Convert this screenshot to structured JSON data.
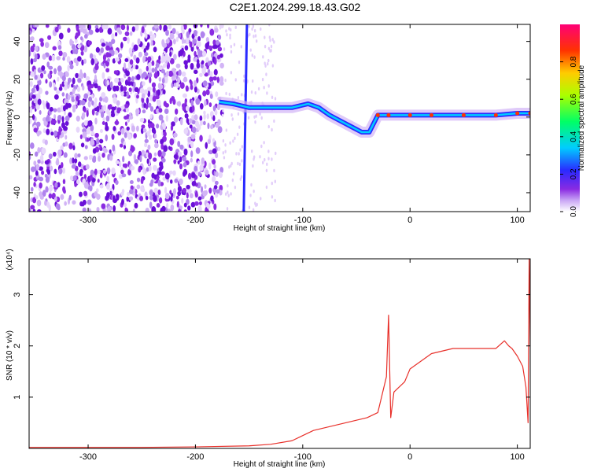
{
  "title": "C2E1.2024.299.18.43.G02",
  "chart_data": [
    {
      "type": "heatmap",
      "xlabel": "Height of straight line (km)",
      "ylabel": "Frequency (Hz)",
      "xlim": [
        -355,
        112
      ],
      "ylim": [
        -50,
        49
      ],
      "xticks": [
        -300,
        -200,
        -100,
        0,
        100
      ],
      "yticks": [
        -40,
        -20,
        0,
        20,
        40
      ],
      "grid": false,
      "colorbar": {
        "label": "Normalized spectral amplitude",
        "ticks": [
          0.0,
          0.2,
          0.4,
          0.6,
          0.8
        ],
        "colors": [
          "#ffffff",
          "#c9a6f5",
          "#8a2be2",
          "#2a2aff",
          "#00ccff",
          "#00ff66",
          "#aaff00",
          "#ffcc00",
          "#ff3300",
          "#ff0077"
        ]
      },
      "features": {
        "noise_region_x": [
          -355,
          -175
        ],
        "signal_track": {
          "x": [
            -178,
            -165,
            -150,
            -130,
            -110,
            -95,
            -85,
            -75,
            -65,
            -55,
            -45,
            -38,
            -30,
            -20,
            0,
            20,
            50,
            80,
            100,
            112
          ],
          "y": [
            8,
            7,
            5,
            5,
            5,
            7,
            5,
            1,
            -2,
            -5,
            -8,
            -8,
            1,
            1,
            1,
            1,
            1,
            1,
            2,
            2
          ]
        },
        "diagonal_streak": {
          "x": [
            -155,
            -152
          ],
          "y": [
            -50,
            49
          ]
        }
      }
    },
    {
      "type": "line",
      "xlabel": "Height of straight line (km)",
      "ylabel": "SNR (10 * v/v)",
      "scale_label": "(x10⁴)",
      "xlim": [
        -355,
        112
      ],
      "ylim": [
        0,
        3.7
      ],
      "xticks": [
        -300,
        -200,
        -100,
        0,
        100
      ],
      "yticks": [
        1,
        2,
        3
      ],
      "grid": false,
      "series": [
        {
          "color": "#e8302a",
          "x": [
            -355,
            -300,
            -250,
            -200,
            -150,
            -130,
            -110,
            -100,
            -90,
            -80,
            -70,
            -60,
            -50,
            -40,
            -30,
            -22,
            -20,
            -18,
            -15,
            -10,
            -5,
            0,
            10,
            20,
            30,
            40,
            50,
            60,
            70,
            80,
            88,
            92,
            95,
            100,
            105,
            108,
            110,
            111,
            112
          ],
          "y": [
            0.02,
            0.02,
            0.02,
            0.03,
            0.05,
            0.08,
            0.15,
            0.25,
            0.35,
            0.4,
            0.45,
            0.5,
            0.55,
            0.6,
            0.7,
            1.4,
            2.6,
            0.6,
            1.1,
            1.2,
            1.3,
            1.55,
            1.7,
            1.85,
            1.9,
            1.95,
            1.95,
            1.95,
            1.95,
            1.95,
            2.1,
            2.0,
            1.95,
            1.8,
            1.6,
            1.2,
            0.5,
            3.7,
            2.0
          ]
        }
      ]
    }
  ]
}
